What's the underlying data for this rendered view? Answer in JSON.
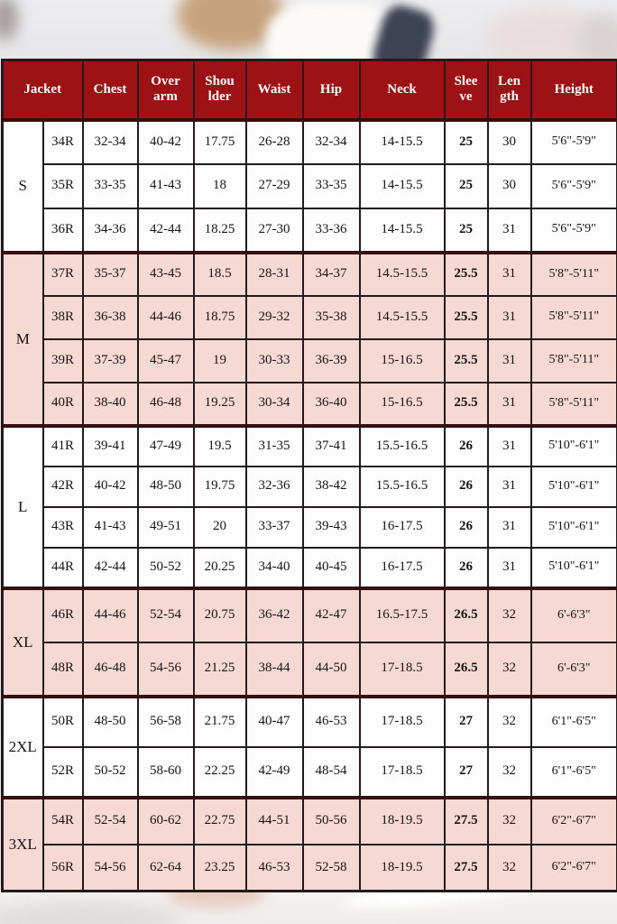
{
  "colors": {
    "header_bg": "#9c1215",
    "header_text": "#ffffff",
    "row_pink": "#f7d9d4",
    "row_white": "#fefdfd",
    "border_color": "#241a1b",
    "group_separator": "#33100f",
    "cell_text": "#161414"
  },
  "chart_data": {
    "type": "table",
    "columns": [
      "Jacket",
      "Chest",
      "Over\narm",
      "Shou\nlder",
      "Waist",
      "Hip",
      "Neck",
      "Slee\nve",
      "Len\ngth",
      "Height"
    ],
    "row_keys": [
      "jacket",
      "chest",
      "overarm",
      "shoulder",
      "waist",
      "hip",
      "neck",
      "sleeve",
      "length",
      "height"
    ],
    "groups": [
      {
        "label": "S",
        "shade": "white",
        "css": "g-s",
        "rows": [
          {
            "jacket": "34R",
            "chest": "32-34",
            "overarm": "40-42",
            "shoulder": "17.75",
            "waist": "26-28",
            "hip": "32-34",
            "neck": "14-15.5",
            "sleeve": "25",
            "length": "30",
            "height": "5'6\"-5'9\""
          },
          {
            "jacket": "35R",
            "chest": "33-35",
            "overarm": "41-43",
            "shoulder": "18",
            "waist": "27-29",
            "hip": "33-35",
            "neck": "14-15.5",
            "sleeve": "25",
            "length": "30",
            "height": "5'6\"-5'9\""
          },
          {
            "jacket": "36R",
            "chest": "34-36",
            "overarm": "42-44",
            "shoulder": "18.25",
            "waist": "27-30",
            "hip": "33-36",
            "neck": "14-15.5",
            "sleeve": "25",
            "length": "31",
            "height": "5'6\"-5'9\""
          }
        ]
      },
      {
        "label": "M",
        "shade": "pink",
        "css": "g-m",
        "rows": [
          {
            "jacket": "37R",
            "chest": "35-37",
            "overarm": "43-45",
            "shoulder": "18.5",
            "waist": "28-31",
            "hip": "34-37",
            "neck": "14.5-15.5",
            "sleeve": "25.5",
            "length": "31",
            "height": "5'8\"-5'11\""
          },
          {
            "jacket": "38R",
            "chest": "36-38",
            "overarm": "44-46",
            "shoulder": "18.75",
            "waist": "29-32",
            "hip": "35-38",
            "neck": "14.5-15.5",
            "sleeve": "25.5",
            "length": "31",
            "height": "5'8\"-5'11\""
          },
          {
            "jacket": "39R",
            "chest": "37-39",
            "overarm": "45-47",
            "shoulder": "19",
            "waist": "30-33",
            "hip": "36-39",
            "neck": "15-16.5",
            "sleeve": "25.5",
            "length": "31",
            "height": "5'8\"-5'11\""
          },
          {
            "jacket": "40R",
            "chest": "38-40",
            "overarm": "46-48",
            "shoulder": "19.25",
            "waist": "30-34",
            "hip": "36-40",
            "neck": "15-16.5",
            "sleeve": "25.5",
            "length": "31",
            "height": "5'8\"-5'11\""
          }
        ]
      },
      {
        "label": "L",
        "shade": "white",
        "css": "g-l",
        "rows": [
          {
            "jacket": "41R",
            "chest": "39-41",
            "overarm": "47-49",
            "shoulder": "19.5",
            "waist": "31-35",
            "hip": "37-41",
            "neck": "15.5-16.5",
            "sleeve": "26",
            "length": "31",
            "height": "5'10\"-6'1\""
          },
          {
            "jacket": "42R",
            "chest": "40-42",
            "overarm": "48-50",
            "shoulder": "19.75",
            "waist": "32-36",
            "hip": "38-42",
            "neck": "15.5-16.5",
            "sleeve": "26",
            "length": "31",
            "height": "5'10\"-6'1\""
          },
          {
            "jacket": "43R",
            "chest": "41-43",
            "overarm": "49-51",
            "shoulder": "20",
            "waist": "33-37",
            "hip": "39-43",
            "neck": "16-17.5",
            "sleeve": "26",
            "length": "31",
            "height": "5'10\"-6'1\""
          },
          {
            "jacket": "44R",
            "chest": "42-44",
            "overarm": "50-52",
            "shoulder": "20.25",
            "waist": "34-40",
            "hip": "40-45",
            "neck": "16-17.5",
            "sleeve": "26",
            "length": "31",
            "height": "5'10\"-6'1\""
          }
        ]
      },
      {
        "label": "XL",
        "shade": "pink",
        "css": "g-xl",
        "rows": [
          {
            "jacket": "46R",
            "chest": "44-46",
            "overarm": "52-54",
            "shoulder": "20.75",
            "waist": "36-42",
            "hip": "42-47",
            "neck": "16.5-17.5",
            "sleeve": "26.5",
            "length": "32",
            "height": "6'-6'3\""
          },
          {
            "jacket": "48R",
            "chest": "46-48",
            "overarm": "54-56",
            "shoulder": "21.25",
            "waist": "38-44",
            "hip": "44-50",
            "neck": "17-18.5",
            "sleeve": "26.5",
            "length": "32",
            "height": "6'-6'3\""
          }
        ]
      },
      {
        "label": "2XL",
        "shade": "white",
        "css": "g-2xl",
        "rows": [
          {
            "jacket": "50R",
            "chest": "48-50",
            "overarm": "56-58",
            "shoulder": "21.75",
            "waist": "40-47",
            "hip": "46-53",
            "neck": "17-18.5",
            "sleeve": "27",
            "length": "32",
            "height": "6'1\"-6'5\""
          },
          {
            "jacket": "52R",
            "chest": "50-52",
            "overarm": "58-60",
            "shoulder": "22.25",
            "waist": "42-49",
            "hip": "48-54",
            "neck": "17-18.5",
            "sleeve": "27",
            "length": "32",
            "height": "6'1\"-6'5\""
          }
        ]
      },
      {
        "label": "3XL",
        "shade": "pink",
        "css": "g-3xl",
        "rows": [
          {
            "jacket": "54R",
            "chest": "52-54",
            "overarm": "60-62",
            "shoulder": "22.75",
            "waist": "44-51",
            "hip": "50-56",
            "neck": "18-19.5",
            "sleeve": "27.5",
            "length": "32",
            "height": "6'2\"-6'7\""
          },
          {
            "jacket": "56R",
            "chest": "54-56",
            "overarm": "62-64",
            "shoulder": "23.25",
            "waist": "46-53",
            "hip": "52-58",
            "neck": "18-19.5",
            "sleeve": "27.5",
            "length": "32",
            "height": "6'2\"-6'7\""
          }
        ]
      }
    ]
  }
}
